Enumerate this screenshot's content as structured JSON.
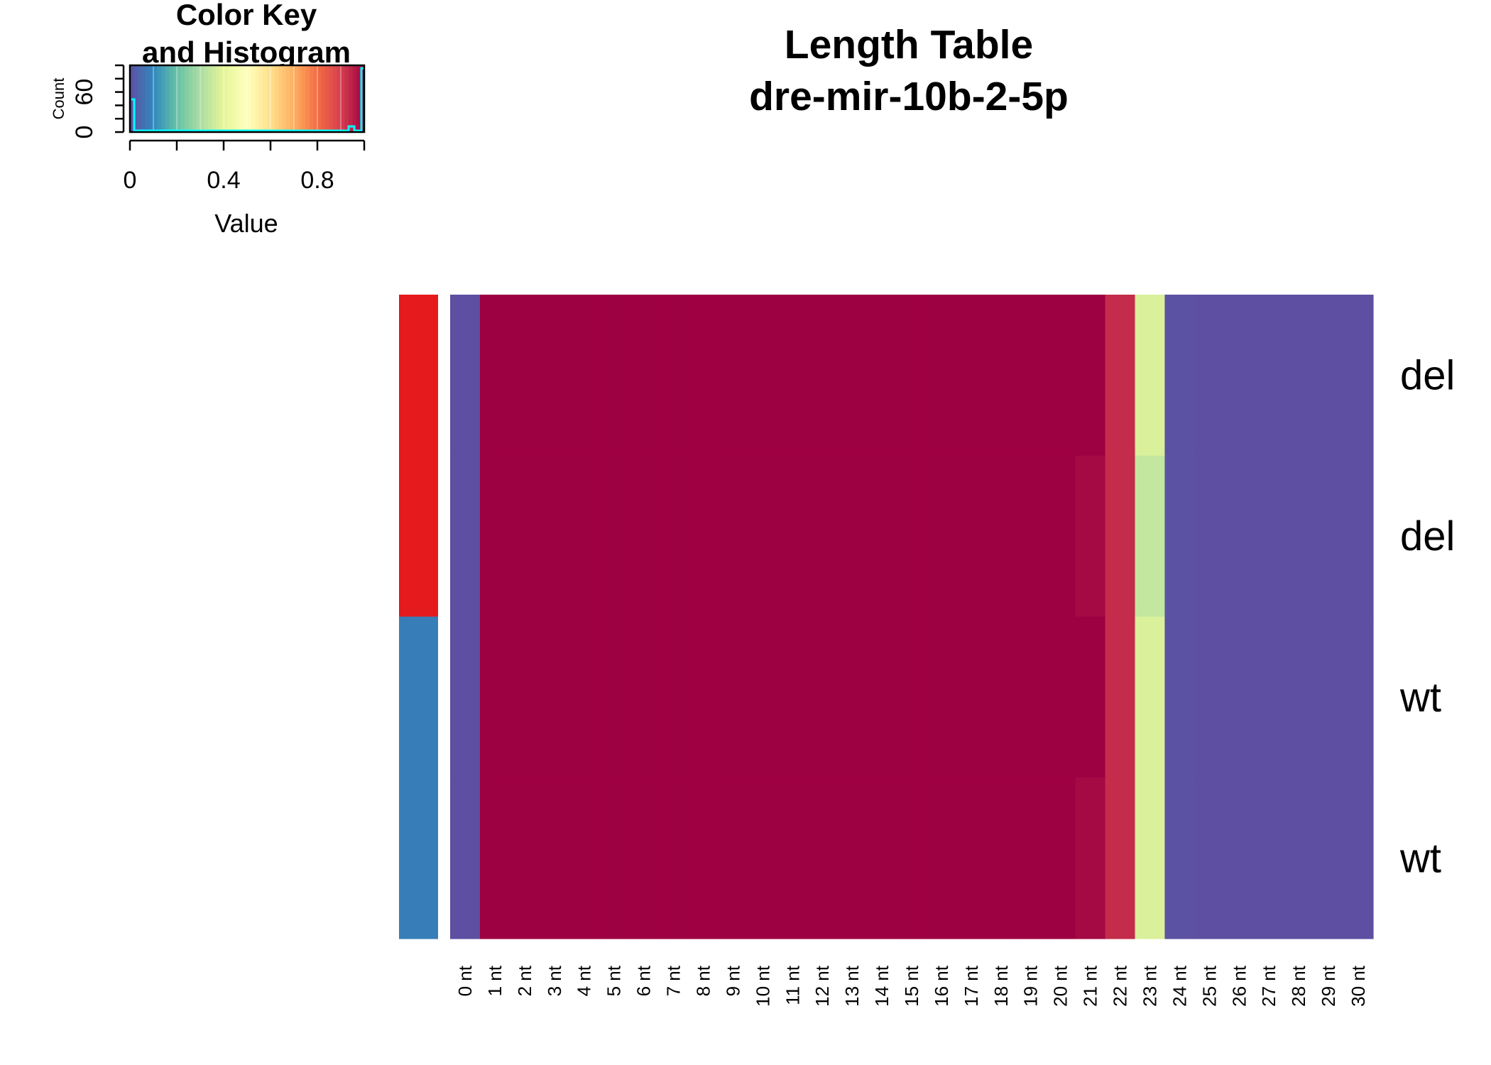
{
  "chart_data": {
    "type": "heatmap",
    "title": "Length Table",
    "subtitle": "dre-mir-10b-2-5p",
    "columns": [
      "0 nt",
      "1 nt",
      "2 nt",
      "3 nt",
      "4 nt",
      "5 nt",
      "6 nt",
      "7 nt",
      "8 nt",
      "9 nt",
      "10 nt",
      "11 nt",
      "12 nt",
      "13 nt",
      "14 nt",
      "15 nt",
      "16 nt",
      "17 nt",
      "18 nt",
      "19 nt",
      "20 nt",
      "21 nt",
      "22 nt",
      "23 nt",
      "24 nt",
      "25 nt",
      "26 nt",
      "27 nt",
      "28 nt",
      "29 nt",
      "30 nt"
    ],
    "rows": [
      {
        "label": "del",
        "group_color": "#E41A1C",
        "values": [
          0,
          1,
          1,
          1,
          1,
          1,
          1,
          1,
          1,
          1,
          1,
          1,
          1,
          1,
          1,
          1,
          1,
          1,
          1,
          1,
          1,
          1,
          0.93,
          0.38,
          0.005,
          0,
          0,
          0,
          0,
          0,
          0
        ]
      },
      {
        "label": "del",
        "group_color": "#E41A1C",
        "values": [
          0,
          1,
          1,
          1,
          1,
          1,
          1,
          1,
          1,
          1,
          1,
          1,
          1,
          1,
          1,
          1,
          1,
          1,
          1,
          1,
          1,
          0.985,
          0.93,
          0.34,
          0.005,
          0,
          0,
          0,
          0,
          0,
          0
        ]
      },
      {
        "label": "wt",
        "group_color": "#377EB8",
        "values": [
          0,
          1,
          1,
          1,
          1,
          1,
          1,
          1,
          1,
          1,
          1,
          1,
          1,
          1,
          1,
          1,
          1,
          1,
          1,
          1,
          1,
          1,
          0.93,
          0.38,
          0.005,
          0,
          0,
          0,
          0,
          0,
          0
        ]
      },
      {
        "label": "wt",
        "group_color": "#377EB8",
        "values": [
          0,
          1,
          1,
          1,
          1,
          1,
          1,
          1,
          1,
          1,
          1,
          1,
          1,
          1,
          1,
          1,
          1,
          1,
          1,
          1,
          1,
          0.985,
          0.93,
          0.38,
          0.005,
          0,
          0,
          0,
          0,
          0,
          0
        ]
      }
    ],
    "color_palette": [
      "#5E4FA2",
      "#3288BD",
      "#66C2A5",
      "#ABDDA4",
      "#E6F598",
      "#FFFFBF",
      "#FEE08B",
      "#FDAE61",
      "#F46D43",
      "#D53E4F",
      "#9E0142"
    ],
    "color_key": {
      "title_lines": [
        "Color Key",
        "and Histogram"
      ],
      "xlabel": "Value",
      "ylabel": "Count",
      "x_ticks": [
        "0",
        "0.4",
        "0.8"
      ],
      "y_ticks": [
        "0",
        "60"
      ],
      "xlim": [
        0,
        1
      ],
      "histogram_color": "#00FFFF"
    }
  }
}
